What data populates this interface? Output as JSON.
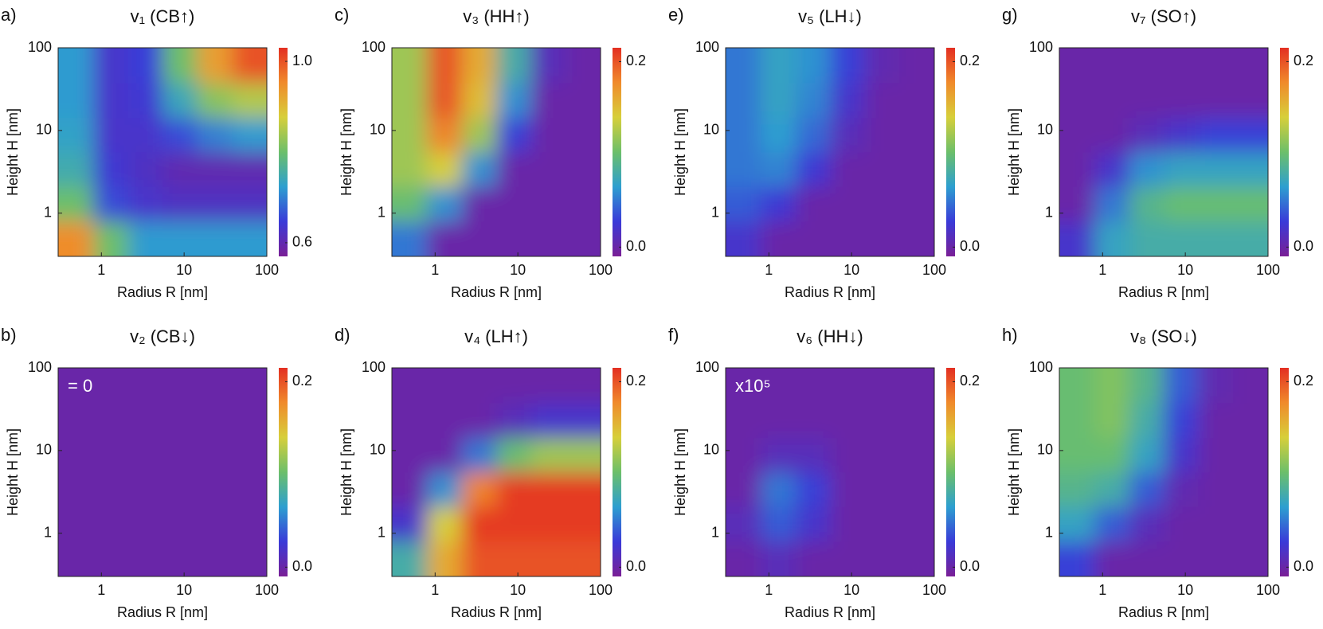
{
  "chart_data": [
    {
      "type": "heatmap",
      "label": "a)",
      "title": "v₁ (CB↑)",
      "xlabel": "Radius R [nm]",
      "ylabel": "Height H [nm]",
      "xlim": [
        0.3,
        100
      ],
      "ylim": [
        0.3,
        100
      ],
      "xticks": [
        1,
        10,
        100
      ],
      "yticks": [
        1,
        10,
        100
      ],
      "x": [
        0.49,
        1.3,
        3.4,
        8.9,
        23,
        62
      ],
      "y": [
        0.49,
        1.3,
        3.4,
        8.9,
        23,
        62
      ],
      "z": [
        [
          0.95,
          0.8,
          0.72,
          0.72,
          0.72,
          0.72
        ],
        [
          0.8,
          0.66,
          0.63,
          0.62,
          0.62,
          0.62
        ],
        [
          0.75,
          0.64,
          0.62,
          0.6,
          0.6,
          0.6
        ],
        [
          0.73,
          0.63,
          0.63,
          0.66,
          0.7,
          0.72
        ],
        [
          0.72,
          0.63,
          0.64,
          0.74,
          0.82,
          0.85
        ],
        [
          0.72,
          0.63,
          0.65,
          0.8,
          0.93,
          1.0
        ]
      ],
      "clim": [
        0.57,
        1.03
      ],
      "cticks": [
        0.6,
        {
          "value": 1,
          "label": "1.0"
        }
      ],
      "colormap": [
        "#7a1f96",
        "#3a3ad8",
        "#2d9fd0",
        "#6cbf6a",
        "#d7cf3a",
        "#f08a2b",
        "#e32f22"
      ]
    },
    {
      "type": "heatmap",
      "label": "b)",
      "title": "v₂ (CB↓)",
      "xlabel": "Radius R [nm]",
      "ylabel": "Height H [nm]",
      "annotation": "= 0",
      "xlim": [
        0.3,
        100
      ],
      "ylim": [
        0.3,
        100
      ],
      "xticks": [
        1,
        10,
        100
      ],
      "yticks": [
        1,
        10,
        100
      ],
      "x": [
        0.49,
        1.3,
        3.4,
        8.9,
        23,
        62
      ],
      "y": [
        0.49,
        1.3,
        3.4,
        8.9,
        23,
        62
      ],
      "z": [
        [
          0,
          0,
          0,
          0,
          0,
          0
        ],
        [
          0,
          0,
          0,
          0,
          0,
          0
        ],
        [
          0,
          0,
          0,
          0,
          0,
          0
        ],
        [
          0,
          0,
          0,
          0,
          0,
          0
        ],
        [
          0,
          0,
          0,
          0,
          0,
          0
        ],
        [
          0,
          0,
          0,
          0,
          0,
          0
        ]
      ],
      "clim": [
        -0.01,
        0.215
      ],
      "cticks": [
        {
          "value": 0,
          "label": "0.0"
        },
        0.2
      ],
      "colormap": [
        "#7a1f96",
        "#3a3ad8",
        "#2d9fd0",
        "#6cbf6a",
        "#d7cf3a",
        "#f08a2b",
        "#e32f22"
      ]
    },
    {
      "type": "heatmap",
      "label": "c)",
      "title": "v₃ (HH↑)",
      "xlabel": "Radius R [nm]",
      "ylabel": "Height H [nm]",
      "xlim": [
        0.3,
        100
      ],
      "ylim": [
        0.3,
        100
      ],
      "xticks": [
        1,
        10,
        100
      ],
      "yticks": [
        1,
        10,
        100
      ],
      "x": [
        0.49,
        1.3,
        3.4,
        8.9,
        23,
        62
      ],
      "y": [
        0.49,
        1.3,
        3.4,
        8.9,
        23,
        62
      ],
      "z": [
        [
          0.05,
          0,
          0,
          0,
          0,
          0
        ],
        [
          0.1,
          0.06,
          0,
          0,
          0,
          0
        ],
        [
          0.12,
          0.14,
          0.06,
          0,
          0,
          0
        ],
        [
          0.12,
          0.18,
          0.12,
          0.03,
          0,
          0
        ],
        [
          0.12,
          0.2,
          0.15,
          0.06,
          0,
          0
        ],
        [
          0.12,
          0.2,
          0.16,
          0.08,
          0.01,
          0
        ]
      ],
      "clim": [
        -0.01,
        0.215
      ],
      "cticks": [
        {
          "value": 0,
          "label": "0.0"
        },
        0.2
      ],
      "colormap": [
        "#7a1f96",
        "#3a3ad8",
        "#2d9fd0",
        "#6cbf6a",
        "#d7cf3a",
        "#f08a2b",
        "#e32f22"
      ]
    },
    {
      "type": "heatmap",
      "label": "d)",
      "title": "v₄ (LH↑)",
      "xlabel": "Radius R [nm]",
      "ylabel": "Height H [nm]",
      "xlim": [
        0.3,
        100
      ],
      "ylim": [
        0.3,
        100
      ],
      "xticks": [
        1,
        10,
        100
      ],
      "yticks": [
        1,
        10,
        100
      ],
      "x": [
        0.49,
        1.3,
        3.4,
        8.9,
        23,
        62
      ],
      "y": [
        0.49,
        1.3,
        3.4,
        8.9,
        23,
        62
      ],
      "z": [
        [
          0.08,
          0.16,
          0.2,
          0.2,
          0.2,
          0.2
        ],
        [
          0.02,
          0.14,
          0.21,
          0.21,
          0.21,
          0.21
        ],
        [
          0,
          0.06,
          0.18,
          0.21,
          0.21,
          0.21
        ],
        [
          0,
          0,
          0.05,
          0.1,
          0.12,
          0.12
        ],
        [
          0,
          0,
          0,
          0.01,
          0.02,
          0.02
        ],
        [
          0,
          0,
          0,
          0,
          0,
          0
        ]
      ],
      "clim": [
        -0.01,
        0.215
      ],
      "cticks": [
        {
          "value": 0,
          "label": "0.0"
        },
        0.2
      ],
      "colormap": [
        "#7a1f96",
        "#3a3ad8",
        "#2d9fd0",
        "#6cbf6a",
        "#d7cf3a",
        "#f08a2b",
        "#e32f22"
      ]
    },
    {
      "type": "heatmap",
      "label": "e)",
      "title": "v₅ (LH↓)",
      "xlabel": "Radius R [nm]",
      "ylabel": "Height H [nm]",
      "xlim": [
        0.3,
        100
      ],
      "ylim": [
        0.3,
        100
      ],
      "xticks": [
        1,
        10,
        100
      ],
      "yticks": [
        1,
        10,
        100
      ],
      "x": [
        0.49,
        1.3,
        3.4,
        8.9,
        23,
        62
      ],
      "y": [
        0.49,
        1.3,
        3.4,
        8.9,
        23,
        62
      ],
      "z": [
        [
          0.02,
          0,
          0,
          0,
          0,
          0
        ],
        [
          0.04,
          0.025,
          0,
          0,
          0,
          0
        ],
        [
          0.05,
          0.055,
          0.025,
          0,
          0,
          0
        ],
        [
          0.05,
          0.065,
          0.045,
          0.01,
          0,
          0
        ],
        [
          0.05,
          0.07,
          0.055,
          0.02,
          0,
          0
        ],
        [
          0.05,
          0.07,
          0.06,
          0.03,
          0.005,
          0
        ]
      ],
      "clim": [
        -0.01,
        0.215
      ],
      "cticks": [
        {
          "value": 0,
          "label": "0.0"
        },
        0.2
      ],
      "colormap": [
        "#7a1f96",
        "#3a3ad8",
        "#2d9fd0",
        "#6cbf6a",
        "#d7cf3a",
        "#f08a2b",
        "#e32f22"
      ]
    },
    {
      "type": "heatmap",
      "label": "f)",
      "title": "v₆ (HH↓)",
      "xlabel": "Radius R [nm]",
      "ylabel": "Height H [nm]",
      "annotation": "x10⁵",
      "xlim": [
        0.3,
        100
      ],
      "ylim": [
        0.3,
        100
      ],
      "xticks": [
        1,
        10,
        100
      ],
      "yticks": [
        1,
        10,
        100
      ],
      "x": [
        0.49,
        1.3,
        3.4,
        8.9,
        23,
        62
      ],
      "y": [
        0.49,
        1.3,
        3.4,
        8.9,
        23,
        62
      ],
      "z": [
        [
          0,
          0.01,
          0,
          0,
          0,
          0
        ],
        [
          0.01,
          0.04,
          0.02,
          0,
          0,
          0
        ],
        [
          0,
          0.05,
          0.03,
          0,
          0,
          0
        ],
        [
          0,
          0.01,
          0.01,
          0,
          0,
          0
        ],
        [
          0,
          0,
          0,
          0,
          0,
          0
        ],
        [
          0,
          0,
          0,
          0,
          0,
          0
        ]
      ],
      "clim": [
        -0.01,
        0.215
      ],
      "cticks": [
        {
          "value": 0,
          "label": "0.0"
        },
        0.2
      ],
      "colormap": [
        "#7a1f96",
        "#3a3ad8",
        "#2d9fd0",
        "#6cbf6a",
        "#d7cf3a",
        "#f08a2b",
        "#e32f22"
      ]
    },
    {
      "type": "heatmap",
      "label": "g)",
      "title": "v₇ (SO↑)",
      "xlabel": "Radius R [nm]",
      "ylabel": "Height H [nm]",
      "xlim": [
        0.3,
        100
      ],
      "ylim": [
        0.3,
        100
      ],
      "xticks": [
        1,
        10,
        100
      ],
      "yticks": [
        1,
        10,
        100
      ],
      "x": [
        0.49,
        1.3,
        3.4,
        8.9,
        23,
        62
      ],
      "y": [
        0.49,
        1.3,
        3.4,
        8.9,
        23,
        62
      ],
      "z": [
        [
          0.02,
          0.07,
          0.08,
          0.08,
          0.08,
          0.08
        ],
        [
          0,
          0.05,
          0.09,
          0.1,
          0.1,
          0.1
        ],
        [
          0,
          0.02,
          0.06,
          0.07,
          0.07,
          0.07
        ],
        [
          0,
          0,
          0.01,
          0.02,
          0.03,
          0.03
        ],
        [
          0,
          0,
          0,
          0,
          0,
          0
        ],
        [
          0,
          0,
          0,
          0,
          0,
          0
        ]
      ],
      "clim": [
        -0.01,
        0.215
      ],
      "cticks": [
        {
          "value": 0,
          "label": "0.0"
        },
        0.2
      ],
      "colormap": [
        "#7a1f96",
        "#3a3ad8",
        "#2d9fd0",
        "#6cbf6a",
        "#d7cf3a",
        "#f08a2b",
        "#e32f22"
      ]
    },
    {
      "type": "heatmap",
      "label": "h)",
      "title": "v₈ (SO↓)",
      "xlabel": "Radius R [nm]",
      "ylabel": "Height H [nm]",
      "xlim": [
        0.3,
        100
      ],
      "ylim": [
        0.3,
        100
      ],
      "xticks": [
        1,
        10,
        100
      ],
      "yticks": [
        1,
        10,
        100
      ],
      "x": [
        0.49,
        1.3,
        3.4,
        8.9,
        23,
        62
      ],
      "y": [
        0.49,
        1.3,
        3.4,
        8.9,
        23,
        62
      ],
      "z": [
        [
          0.03,
          0,
          0,
          0,
          0,
          0
        ],
        [
          0.07,
          0.04,
          0.01,
          0,
          0,
          0
        ],
        [
          0.09,
          0.08,
          0.04,
          0.005,
          0,
          0
        ],
        [
          0.1,
          0.1,
          0.07,
          0.02,
          0,
          0
        ],
        [
          0.1,
          0.11,
          0.08,
          0.03,
          0,
          0
        ],
        [
          0.1,
          0.11,
          0.09,
          0.04,
          0.005,
          0
        ]
      ],
      "clim": [
        -0.01,
        0.215
      ],
      "cticks": [
        {
          "value": 0,
          "label": "0.0"
        },
        0.2
      ],
      "colormap": [
        "#7a1f96",
        "#3a3ad8",
        "#2d9fd0",
        "#6cbf6a",
        "#d7cf3a",
        "#f08a2b",
        "#e32f22"
      ]
    }
  ]
}
